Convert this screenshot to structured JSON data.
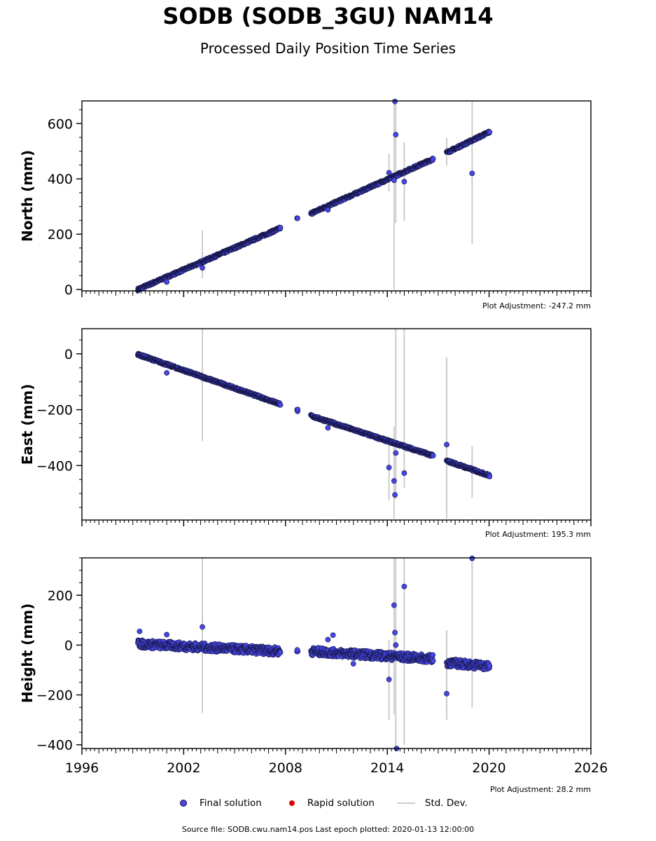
{
  "title": "SODB (SODB_3GU) NAM14",
  "subtitle": "Processed Daily Position Time Series",
  "footer": "Source file: SODB.cwu.nam14.pos  Last epoch plotted: 2020-01-13 12:00:00",
  "legend": {
    "final": "Final solution",
    "rapid": "Rapid solution",
    "std": "Std. Dev."
  },
  "colors": {
    "final": "#4646e6",
    "final_edge": "#14143c",
    "rapid": "#dd0000",
    "std": "#cccccc"
  },
  "chart_data": [
    {
      "type": "scatter",
      "ylabel": "North (mm)",
      "adjustment": "Plot Adjustment: -247.2 mm",
      "xlim": [
        1996,
        2026
      ],
      "ylim": [
        -5,
        682
      ],
      "yticks": [
        0,
        200,
        400,
        600
      ],
      "trend": [
        {
          "x": [
            1999.3,
            2007.7
          ],
          "y": [
            0,
            222
          ]
        },
        {
          "x": [
            2008.7,
            2008.7
          ],
          "y": [
            255,
            255
          ]
        },
        {
          "x": [
            2009.5,
            2016.7
          ],
          "y": [
            275,
            472
          ]
        },
        {
          "x": [
            2017.5,
            2020.03
          ],
          "y": [
            495,
            570
          ]
        }
      ],
      "scatter": 4,
      "outliers": [
        [
          2001.0,
          27
        ],
        [
          2003.1,
          78
        ],
        [
          2010.5,
          288
        ],
        [
          2014.1,
          422
        ],
        [
          2014.4,
          395
        ],
        [
          2014.5,
          560
        ],
        [
          2014.45,
          680
        ],
        [
          2015.0,
          390
        ],
        [
          2019.0,
          420
        ]
      ],
      "errorbars": [
        [
          2003.1,
          40,
          214
        ],
        [
          2014.1,
          355,
          492
        ],
        [
          2014.4,
          0,
          682
        ],
        [
          2014.5,
          240,
          682
        ],
        [
          2015.0,
          248,
          532
        ],
        [
          2017.5,
          448,
          548
        ],
        [
          2019.0,
          165,
          682
        ]
      ]
    },
    {
      "type": "scatter",
      "ylabel": "East (mm)",
      "adjustment": "Plot Adjustment: 195.3 mm",
      "xlim": [
        1996,
        2026
      ],
      "ylim": [
        -595,
        90
      ],
      "yticks": [
        0,
        -200,
        -400
      ],
      "trend": [
        {
          "x": [
            1999.3,
            2007.7
          ],
          "y": [
            -2,
            -180
          ]
        },
        {
          "x": [
            2008.7,
            2008.7
          ],
          "y": [
            -203,
            -203
          ]
        },
        {
          "x": [
            2009.5,
            2016.7
          ],
          "y": [
            -222,
            -365
          ]
        },
        {
          "x": [
            2017.5,
            2020.03
          ],
          "y": [
            -383,
            -436
          ]
        }
      ],
      "scatter": 4,
      "outliers": [
        [
          2001.0,
          -68
        ],
        [
          2010.5,
          -265
        ],
        [
          2014.1,
          -407
        ],
        [
          2014.4,
          -455
        ],
        [
          2014.45,
          -505
        ],
        [
          2014.5,
          -355
        ],
        [
          2015.0,
          -427
        ],
        [
          2017.5,
          -325
        ]
      ],
      "errorbars": [
        [
          2003.1,
          -312,
          90
        ],
        [
          2014.1,
          -525,
          -330
        ],
        [
          2014.4,
          -590,
          -260
        ],
        [
          2014.5,
          -520,
          90
        ],
        [
          2015.0,
          -480,
          90
        ],
        [
          2017.5,
          -590,
          -12
        ],
        [
          2019.0,
          -515,
          -330
        ]
      ]
    },
    {
      "type": "scatter",
      "ylabel": "Height (mm)",
      "adjustment": "Plot Adjustment: 28.2 mm",
      "xlim": [
        1996,
        2026
      ],
      "ylim": [
        -415,
        350
      ],
      "yticks": [
        200,
        0,
        -200,
        -400
      ],
      "xticks": [
        1996,
        2002,
        2008,
        2014,
        2020,
        2026
      ],
      "trend": [
        {
          "x": [
            1999.3,
            2007.7
          ],
          "y": [
            5,
            -25
          ]
        },
        {
          "x": [
            2008.7,
            2008.7
          ],
          "y": [
            -25,
            -25
          ]
        },
        {
          "x": [
            2009.5,
            2016.7
          ],
          "y": [
            -25,
            -55
          ]
        },
        {
          "x": [
            2017.5,
            2020.03
          ],
          "y": [
            -70,
            -85
          ]
        }
      ],
      "scatter": 16,
      "outliers": [
        [
          1999.4,
          55
        ],
        [
          2001.0,
          42
        ],
        [
          2003.1,
          73
        ],
        [
          2010.8,
          40
        ],
        [
          2010.5,
          22
        ],
        [
          2012.0,
          -75
        ],
        [
          2014.1,
          -138
        ],
        [
          2014.4,
          160
        ],
        [
          2014.45,
          50
        ],
        [
          2014.5,
          0
        ],
        [
          2014.55,
          -415
        ],
        [
          2015.0,
          235
        ],
        [
          2017.5,
          -195
        ],
        [
          2019.0,
          348
        ]
      ],
      "errorbars": [
        [
          2003.1,
          -272,
          350
        ],
        [
          2014.1,
          -300,
          20
        ],
        [
          2014.4,
          -280,
          350
        ],
        [
          2014.5,
          -415,
          350
        ],
        [
          2015.0,
          -400,
          350
        ],
        [
          2017.5,
          -300,
          60
        ],
        [
          2019.0,
          -250,
          350
        ]
      ]
    }
  ]
}
